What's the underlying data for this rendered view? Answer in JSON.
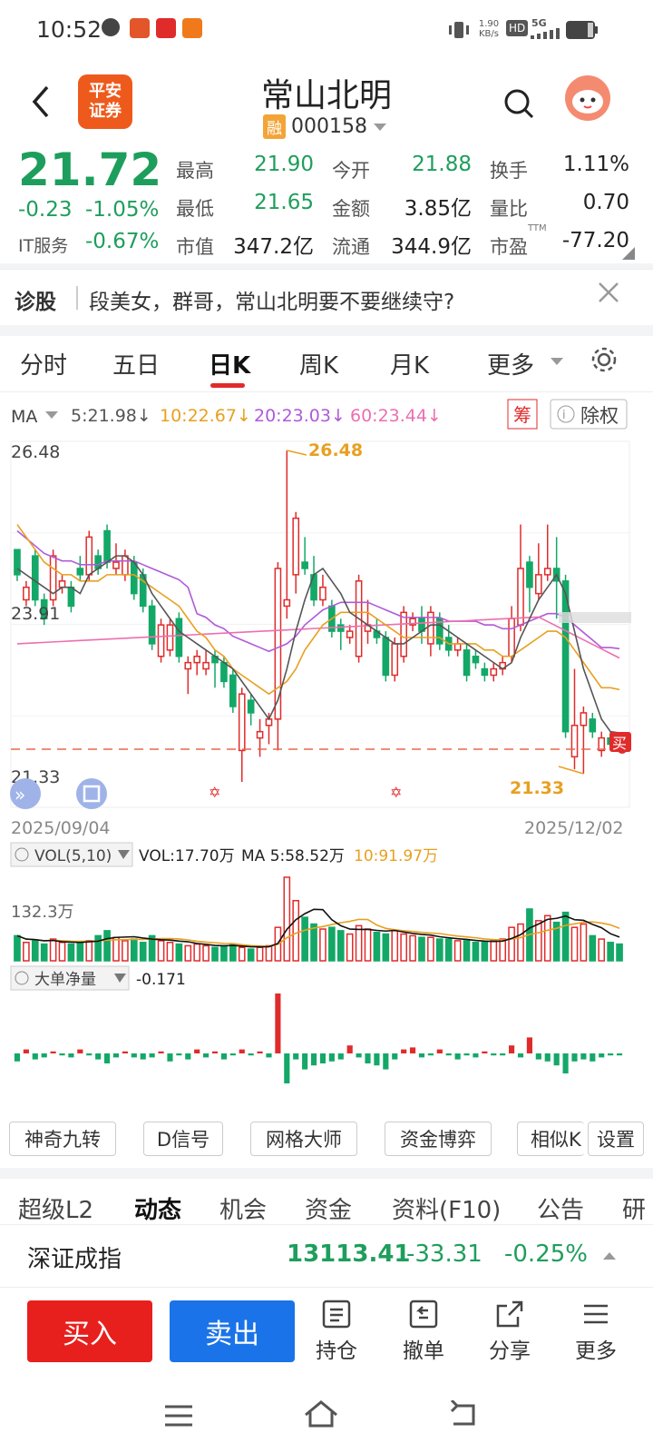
{
  "status_bar": {
    "time": "10:52",
    "net_speed": "1.90\nKB/s",
    "hd": "HD",
    "signal": "5G"
  },
  "header": {
    "title": "常山北明",
    "badge": "融",
    "code": "000158",
    "logo": "平安\n证券"
  },
  "quote": {
    "price": "21.72",
    "change": "-0.23",
    "change_pct": "-1.05%",
    "sector_name": "IT服务",
    "sector_pct": "-0.67%",
    "stats": [
      {
        "label": "最高",
        "value": "21.90",
        "color": "green"
      },
      {
        "label": "今开",
        "value": "21.88",
        "color": "green"
      },
      {
        "label": "换手",
        "value": "1.11%",
        "color": "black"
      },
      {
        "label": "最低",
        "value": "21.65",
        "color": "green"
      },
      {
        "label": "金额",
        "value": "3.85亿",
        "color": "black"
      },
      {
        "label": "量比",
        "value": "0.70",
        "color": "black"
      },
      {
        "label": "市值",
        "value": "347.2亿",
        "color": "black"
      },
      {
        "label": "流通",
        "value": "344.9亿",
        "color": "black"
      },
      {
        "label": "市盈",
        "value": "-77.20",
        "color": "black"
      }
    ],
    "pe_sup": "TTM"
  },
  "diagnose": {
    "label": "诊股",
    "text": "段美女，群哥，常山北明要不要继续守?"
  },
  "tabs": [
    "分时",
    "五日",
    "日K",
    "周K",
    "月K",
    "更多"
  ],
  "active_tab": "日K",
  "ma_legend": {
    "label": "MA",
    "ma5": "5:21.98",
    "ma10": "10:22.67",
    "ma20": "20:23.03",
    "ma60": "60:23.44",
    "chip": "筹",
    "fq": "除权"
  },
  "price_axis": {
    "top": "26.48",
    "mid": "23.91",
    "low": "21.33",
    "high_mark": "26.48",
    "low_mark": "21.33",
    "buy": "买"
  },
  "date_range": {
    "start": "2025/09/04",
    "end": "2025/12/02"
  },
  "vol_legend": {
    "label": "VOL(5,10)",
    "vol": "VOL:17.70万",
    "ma5": "MA 5:58.52万",
    "ma10": "10:91.97万",
    "axis": "132.3万"
  },
  "bigorder_legend": {
    "label": "大单净量",
    "value": "-0.171"
  },
  "colors": {
    "up": "#e02b2b",
    "down": "#13a867",
    "ma5": "#555555",
    "ma10": "#e8a020",
    "ma20": "#b05ad8",
    "ma60": "#ec6fb0"
  },
  "chips": [
    "神奇九转",
    "D信号",
    "网格大师",
    "资金博弈",
    "相似K",
    "设置"
  ],
  "subtabs": [
    "超级L2",
    "动态",
    "机会",
    "资金",
    "资料(F10)",
    "公告",
    "研"
  ],
  "active_subtab": "动态",
  "index": {
    "name": "深证成指",
    "value": "13113.41",
    "change": "-33.31",
    "pct": "-0.25%"
  },
  "bottom": {
    "buy": "买入",
    "sell": "卖出",
    "tools": [
      "持仓",
      "撤单",
      "分享",
      "更多"
    ]
  },
  "chart_data": {
    "type": "candlestick",
    "candles": [
      [
        24.9,
        24.5,
        24.9,
        24.4
      ],
      [
        24.1,
        24.3,
        24.4,
        24.0
      ],
      [
        24.8,
        24.1,
        24.9,
        24.0
      ],
      [
        24.1,
        23.8,
        24.2,
        23.7
      ],
      [
        24.1,
        24.8,
        24.9,
        24.0
      ],
      [
        24.3,
        24.4,
        24.5,
        24.2
      ],
      [
        24.3,
        24.0,
        24.4,
        23.9
      ],
      [
        24.6,
        24.5,
        24.8,
        24.4
      ],
      [
        24.5,
        25.1,
        25.2,
        24.4
      ],
      [
        24.8,
        24.6,
        24.9,
        24.5
      ],
      [
        25.2,
        24.7,
        25.3,
        24.6
      ],
      [
        24.6,
        24.7,
        25.0,
        24.5
      ],
      [
        24.5,
        24.8,
        24.9,
        24.4
      ],
      [
        24.7,
        24.2,
        24.8,
        24.1
      ],
      [
        24.5,
        24.0,
        24.6,
        23.9
      ],
      [
        24.0,
        23.4,
        24.1,
        23.3
      ],
      [
        23.2,
        23.7,
        23.8,
        23.1
      ],
      [
        23.3,
        23.7,
        23.8,
        23.2
      ],
      [
        23.8,
        23.2,
        23.9,
        23.1
      ],
      [
        23.0,
        23.1,
        23.2,
        22.6
      ],
      [
        23.1,
        23.2,
        23.3,
        22.9
      ],
      [
        23.0,
        23.1,
        23.3,
        22.9
      ],
      [
        23.2,
        23.1,
        23.3,
        22.7
      ],
      [
        23.1,
        22.8,
        23.2,
        22.7
      ],
      [
        22.9,
        22.4,
        23.0,
        22.3
      ],
      [
        21.7,
        22.6,
        22.7,
        21.2
      ],
      [
        22.5,
        22.3,
        22.6,
        22.1
      ],
      [
        21.9,
        22.0,
        22.2,
        21.6
      ],
      [
        22.1,
        22.2,
        22.3,
        21.8
      ],
      [
        22.2,
        24.6,
        24.7,
        21.7
      ],
      [
        24.0,
        24.1,
        26.48,
        23.8
      ],
      [
        24.5,
        25.4,
        25.5,
        24.2
      ],
      [
        24.7,
        24.6,
        25.1,
        24.5
      ],
      [
        24.5,
        24.1,
        24.8,
        24.0
      ],
      [
        24.1,
        24.3,
        24.5,
        24.0
      ],
      [
        24.0,
        23.6,
        24.1,
        23.5
      ],
      [
        23.7,
        23.6,
        23.8,
        23.3
      ],
      [
        23.5,
        23.6,
        23.7,
        23.4
      ],
      [
        23.2,
        24.4,
        24.5,
        23.1
      ],
      [
        23.6,
        23.7,
        24.1,
        23.4
      ],
      [
        23.6,
        23.5,
        23.8,
        23.4
      ],
      [
        23.5,
        22.9,
        23.6,
        22.8
      ],
      [
        22.9,
        23.4,
        23.5,
        22.8
      ],
      [
        23.2,
        23.9,
        24.0,
        23.1
      ],
      [
        23.7,
        23.8,
        23.9,
        23.6
      ],
      [
        23.8,
        23.6,
        24.0,
        23.4
      ],
      [
        23.4,
        23.9,
        24.0,
        23.2
      ],
      [
        23.8,
        23.4,
        23.9,
        23.3
      ],
      [
        23.5,
        23.3,
        23.7,
        23.2
      ],
      [
        23.3,
        23.4,
        23.5,
        23.2
      ],
      [
        23.3,
        22.9,
        23.4,
        22.8
      ],
      [
        23.2,
        23.1,
        23.3,
        23.0
      ],
      [
        23.0,
        22.9,
        23.1,
        22.8
      ],
      [
        22.9,
        23.0,
        23.1,
        22.8
      ],
      [
        23.0,
        23.1,
        23.2,
        22.9
      ],
      [
        23.2,
        23.8,
        24.0,
        23.1
      ],
      [
        23.7,
        24.6,
        25.3,
        23.6
      ],
      [
        24.7,
        24.3,
        24.8,
        23.9
      ],
      [
        24.2,
        24.5,
        25.0,
        24.1
      ],
      [
        24.5,
        24.6,
        25.3,
        24.4
      ],
      [
        24.6,
        24.4,
        25.1,
        23.8
      ],
      [
        24.4,
        22.0,
        24.5,
        21.9
      ],
      [
        21.6,
        22.1,
        23.0,
        21.4
      ],
      [
        22.1,
        22.3,
        22.4,
        21.33
      ],
      [
        22.2,
        22.0,
        22.3,
        21.9
      ],
      [
        21.7,
        21.9,
        22.0,
        21.6
      ],
      [
        21.9,
        21.8,
        22.0,
        21.7
      ],
      [
        21.8,
        21.7,
        21.9,
        21.7
      ]
    ],
    "ma5": [
      24.6,
      24.5,
      24.4,
      24.3,
      24.2,
      24.3,
      24.3,
      24.2,
      24.5,
      24.6,
      24.7,
      24.8,
      24.8,
      24.7,
      24.5,
      24.2,
      24.0,
      23.8,
      23.6,
      23.5,
      23.4,
      23.3,
      23.2,
      23.1,
      23.0,
      22.8,
      22.6,
      22.4,
      22.2,
      22.5,
      23.0,
      23.6,
      24.1,
      24.5,
      24.6,
      24.4,
      24.2,
      23.9,
      23.8,
      23.7,
      23.6,
      23.5,
      23.4,
      23.4,
      23.5,
      23.6,
      23.7,
      23.7,
      23.6,
      23.5,
      23.4,
      23.3,
      23.2,
      23.1,
      23.0,
      23.1,
      23.5,
      23.8,
      24.1,
      24.3,
      24.5,
      24.2,
      23.6,
      23.0,
      22.6,
      22.2,
      22.0,
      21.98
    ],
    "ma10": [
      25.3,
      25.1,
      24.9,
      24.7,
      24.6,
      24.5,
      24.5,
      24.4,
      24.4,
      24.4,
      24.5,
      24.5,
      24.5,
      24.5,
      24.4,
      24.3,
      24.2,
      24.1,
      24.0,
      23.8,
      23.6,
      23.5,
      23.3,
      23.2,
      23.0,
      22.9,
      22.8,
      22.7,
      22.6,
      22.7,
      22.8,
      23.0,
      23.3,
      23.5,
      23.7,
      23.8,
      23.9,
      23.9,
      23.9,
      23.9,
      23.8,
      23.7,
      23.6,
      23.5,
      23.5,
      23.5,
      23.5,
      23.5,
      23.4,
      23.4,
      23.4,
      23.4,
      23.3,
      23.3,
      23.2,
      23.2,
      23.3,
      23.4,
      23.5,
      23.6,
      23.6,
      23.5,
      23.3,
      23.1,
      22.9,
      22.7,
      22.7,
      22.67
    ]
  }
}
